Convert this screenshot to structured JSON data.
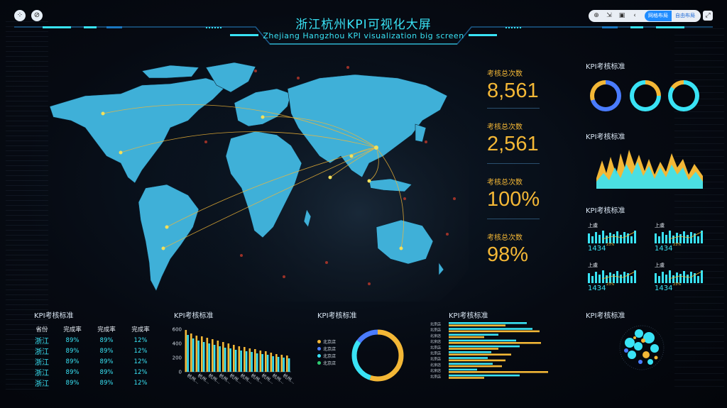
{
  "header": {
    "title": "浙江杭州KPI可视化大屏",
    "subtitle": "Zhejiang Hangzhou KPI visualization big screen"
  },
  "toolbar": {
    "icons": [
      "plus-circle-icon",
      "export-icon",
      "save-icon",
      "chevron-left-icon"
    ],
    "layout_grid": "网格布局",
    "layout_free": "自由布局"
  },
  "kpis": [
    {
      "label": "考核总次数",
      "value": "8,561"
    },
    {
      "label": "考核总次数",
      "value": "2,561"
    },
    {
      "label": "考核总次数",
      "value": "100%"
    },
    {
      "label": "考核总次数",
      "value": "98%"
    }
  ],
  "panel_titles": {
    "rings": "KPI考核标准",
    "area": "KPI考核标准",
    "minis": "KPI考核标准",
    "table": "KPI考核标准",
    "bar": "KPI考核标准",
    "donut": "KPI考核标准",
    "hbar": "KPI考核标准",
    "bubbles": "KPI考核标准"
  },
  "table": {
    "headers": [
      "省份",
      "完成率",
      "完成率",
      "完成率"
    ],
    "rows": [
      [
        "浙江",
        "89%",
        "89%",
        "12%"
      ],
      [
        "浙江",
        "89%",
        "89%",
        "12%"
      ],
      [
        "浙江",
        "89%",
        "89%",
        "12%"
      ],
      [
        "浙江",
        "89%",
        "89%",
        "12%"
      ],
      [
        "浙江",
        "89%",
        "89%",
        "12%"
      ]
    ]
  },
  "mini_cards": [
    {
      "label": "上虞",
      "value": "1434",
      "pct": "23%"
    },
    {
      "label": "上虞",
      "value": "1434",
      "pct": "23%"
    },
    {
      "label": "上虞",
      "value": "1434",
      "pct": "23%"
    },
    {
      "label": "上虞",
      "value": "1434",
      "pct": "23%"
    }
  ],
  "donut_legend": [
    "北京店",
    "北京店",
    "北京店",
    "北京店"
  ],
  "colors": {
    "accent": "#39e3f5",
    "gold": "#f3b736",
    "blue": "#4a7cff",
    "green": "#2ecc71",
    "map": "#3fb0d8"
  },
  "chart_data": [
    {
      "type": "bar",
      "title": "KPI考核标准",
      "categories": [
        "杭州...",
        "",
        "杭州...",
        "",
        "杭州...",
        "",
        "杭州...",
        "",
        "杭州...",
        "",
        "杭州...",
        "",
        "杭州...",
        "",
        "杭州...",
        "",
        "杭州...",
        "",
        "杭州...",
        ""
      ],
      "series": [
        {
          "values": [
            590,
            540,
            510,
            500,
            480,
            460,
            440,
            420,
            400,
            380,
            360,
            350,
            330,
            320,
            300,
            290,
            270,
            250,
            240,
            230
          ]
        },
        {
          "values": [
            520,
            470,
            440,
            420,
            400,
            380,
            360,
            340,
            330,
            310,
            300,
            290,
            280,
            260,
            250,
            240,
            220,
            210,
            200,
            190
          ]
        }
      ],
      "yticks": [
        "0",
        "200",
        "400",
        "600"
      ],
      "ylim": [
        0,
        600
      ]
    },
    {
      "type": "pie",
      "title": "KPI考核标准",
      "categories": [
        "北京店",
        "北京店",
        "北京店",
        "北京店"
      ],
      "values": [
        55,
        30,
        15,
        0
      ]
    },
    {
      "type": "bar",
      "title": "KPI考核标准",
      "orientation": "horizontal",
      "categories": [
        "北京店",
        "北京店",
        "北京店",
        "北京店",
        "北京店",
        "北京店",
        "北京店",
        "北京店",
        "北京店",
        "北京店"
      ],
      "series": [
        {
          "values": [
            110,
            118,
            70,
            95,
            100,
            60,
            55,
            62,
            40,
            100
          ]
        },
        {
          "values": [
            80,
            128,
            50,
            130,
            70,
            88,
            80,
            75,
            140,
            50
          ]
        }
      ]
    },
    {
      "type": "pie",
      "title": "KPI考核标准",
      "categories": [
        "ring-1",
        "ring-2",
        "ring-3"
      ],
      "values": [
        70,
        75,
        85
      ]
    }
  ]
}
